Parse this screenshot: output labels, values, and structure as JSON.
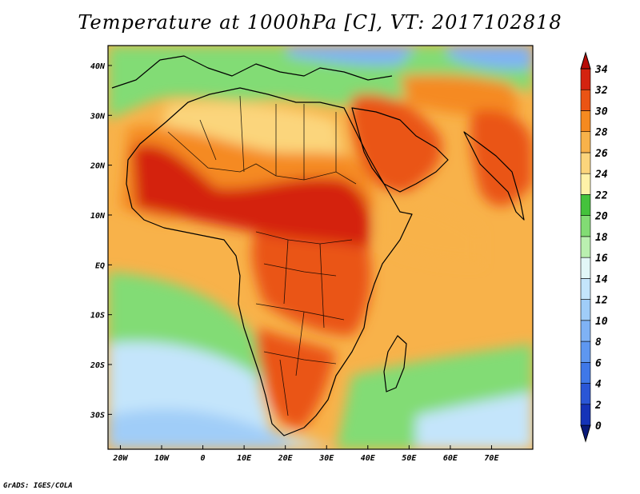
{
  "title": "Temperature at 1000hPa [C], VT: 2017102818",
  "credit": "GrADS: IGES/COLA",
  "map": {
    "lon_range": [
      -23,
      80
    ],
    "lat_range": [
      -37,
      44
    ],
    "lon_ticks": [
      {
        "value": -20,
        "label": "20W"
      },
      {
        "value": -10,
        "label": "10W"
      },
      {
        "value": 0,
        "label": "0"
      },
      {
        "value": 10,
        "label": "10E"
      },
      {
        "value": 20,
        "label": "20E"
      },
      {
        "value": 30,
        "label": "30E"
      },
      {
        "value": 40,
        "label": "40E"
      },
      {
        "value": 50,
        "label": "50E"
      },
      {
        "value": 60,
        "label": "60E"
      },
      {
        "value": 70,
        "label": "70E"
      }
    ],
    "lat_ticks": [
      {
        "value": 40,
        "label": "40N"
      },
      {
        "value": 30,
        "label": "30N"
      },
      {
        "value": 20,
        "label": "20N"
      },
      {
        "value": 10,
        "label": "10N"
      },
      {
        "value": 0,
        "label": "EQ"
      },
      {
        "value": -10,
        "label": "10S"
      },
      {
        "value": -20,
        "label": "20S"
      },
      {
        "value": -30,
        "label": "30S"
      }
    ]
  },
  "colorbar": {
    "levels": [
      "0",
      "2",
      "4",
      "6",
      "8",
      "10",
      "12",
      "14",
      "16",
      "18",
      "20",
      "22",
      "24",
      "26",
      "28",
      "30",
      "32",
      "34"
    ],
    "colors": [
      "#0a1a7a",
      "#1533b8",
      "#2a56d6",
      "#3f78e8",
      "#5e97f0",
      "#7fb2f5",
      "#a0cdf8",
      "#c4e5fb",
      "#e2f7f7",
      "#baf0b0",
      "#82dc74",
      "#44c23c",
      "#fff2a8",
      "#fbd57c",
      "#f8b24a",
      "#f58a20",
      "#ea5414",
      "#d42310",
      "#b80c08"
    ]
  },
  "fields": {
    "background": "#f8b24a",
    "regions": [
      {
        "name": "south-atlantic-cool",
        "color": "#82dc74"
      },
      {
        "name": "south-atlantic-cold",
        "color": "#c4e5fb"
      },
      {
        "name": "south-indian-cool",
        "color": "#82dc74"
      },
      {
        "name": "mediterranean",
        "color": "#82dc74"
      },
      {
        "name": "sahara-yellow",
        "color": "#fbd57c"
      },
      {
        "name": "north-africa-orange",
        "color": "#f58a20"
      },
      {
        "name": "sahel-hot",
        "color": "#d42310"
      },
      {
        "name": "central-africa-hot",
        "color": "#ea5414"
      },
      {
        "name": "southern-africa-hot",
        "color": "#ea5414"
      },
      {
        "name": "arabia-hot",
        "color": "#ea5414"
      },
      {
        "name": "india-hot",
        "color": "#ea5414"
      },
      {
        "name": "iran-hot",
        "color": "#f58a20"
      },
      {
        "name": "caspian-cool",
        "color": "#82dc74"
      },
      {
        "name": "black-sea-cool",
        "color": "#7fb2f5"
      }
    ]
  }
}
